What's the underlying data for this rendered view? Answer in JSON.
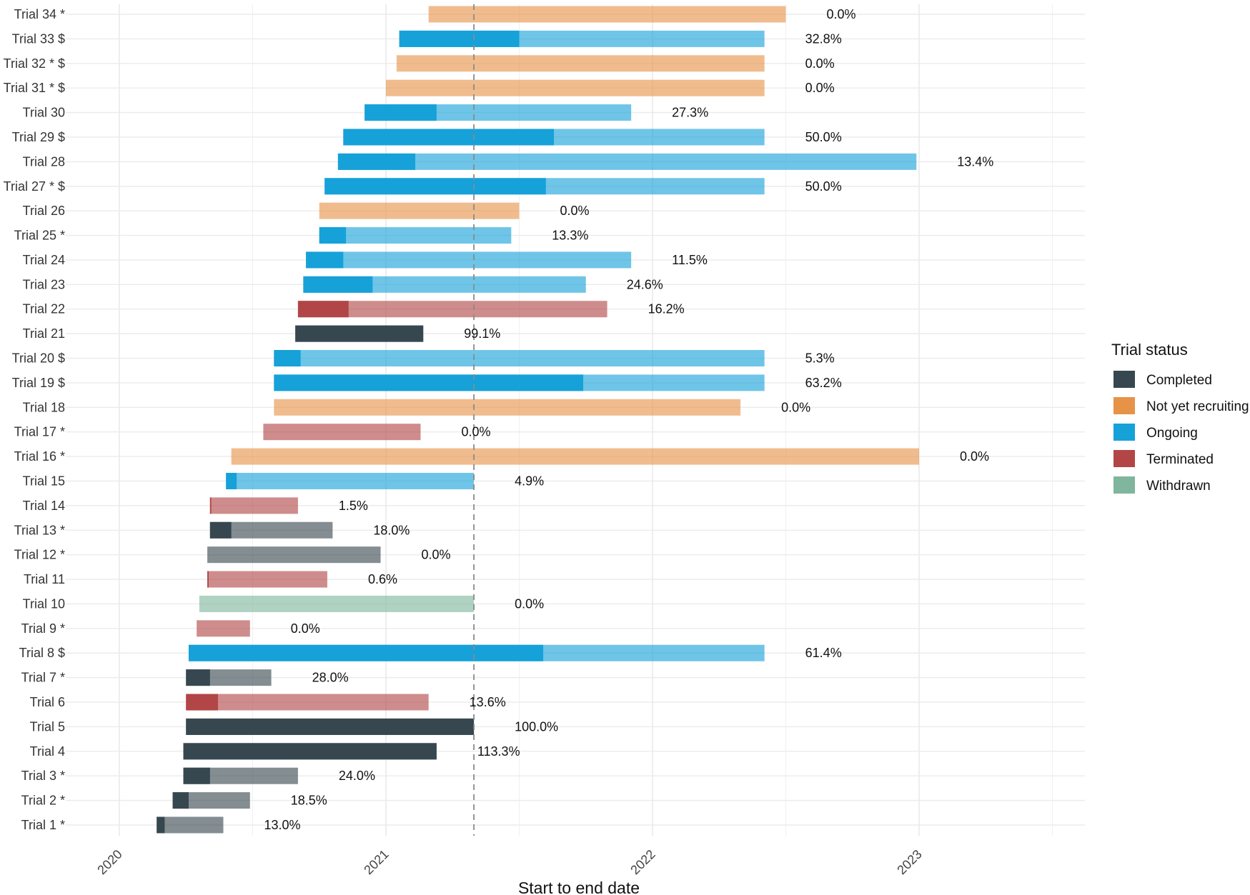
{
  "chart_data": {
    "type": "bar",
    "subtype": "gantt",
    "xlabel": "Start to end date",
    "x_ticks": [
      "2020",
      "2021",
      "2022",
      "2023"
    ],
    "xlim": [
      2019.8,
      2023.65
    ],
    "reference_line_x": 2021.33,
    "legend_title": "Trial status",
    "legend_position": "right",
    "statuses": [
      {
        "key": "completed",
        "label": "Completed",
        "color": "#37474f"
      },
      {
        "key": "not_yet",
        "label": "Not yet recruiting",
        "color": "#e69348"
      },
      {
        "key": "ongoing",
        "label": "Ongoing",
        "color": "#16a1d9"
      },
      {
        "key": "terminated",
        "label": "Terminated",
        "color": "#b24646"
      },
      {
        "key": "withdrawn",
        "label": "Withdrawn",
        "color": "#7fb69d"
      }
    ],
    "trials": [
      {
        "label": "Trial 1 *",
        "status": "completed",
        "start": 2020.14,
        "end": 2020.39,
        "progress_end": 2020.17,
        "pct": "13.0%"
      },
      {
        "label": "Trial 2 *",
        "status": "completed",
        "start": 2020.2,
        "end": 2020.49,
        "progress_end": 2020.26,
        "pct": "18.5%"
      },
      {
        "label": "Trial 3 *",
        "status": "completed",
        "start": 2020.24,
        "end": 2020.67,
        "progress_end": 2020.34,
        "pct": "24.0%"
      },
      {
        "label": "Trial 4",
        "status": "completed",
        "start": 2020.24,
        "end": 2021.19,
        "progress_end": 2021.19,
        "pct": "113.3%"
      },
      {
        "label": "Trial 5",
        "status": "completed",
        "start": 2020.25,
        "end": 2021.33,
        "progress_end": 2021.33,
        "pct": "100.0%"
      },
      {
        "label": "Trial 6",
        "status": "terminated",
        "start": 2020.25,
        "end": 2021.16,
        "progress_end": 2020.37,
        "pct": "13.6%"
      },
      {
        "label": "Trial 7 *",
        "status": "completed",
        "start": 2020.25,
        "end": 2020.57,
        "progress_end": 2020.34,
        "pct": "28.0%"
      },
      {
        "label": "Trial 8 $",
        "status": "ongoing",
        "start": 2020.26,
        "end": 2022.42,
        "progress_end": 2021.59,
        "pct": "61.4%"
      },
      {
        "label": "Trial 9 *",
        "status": "terminated",
        "start": 2020.29,
        "end": 2020.49,
        "progress_end": 2020.29,
        "pct": "0.0%"
      },
      {
        "label": "Trial 10",
        "status": "withdrawn",
        "start": 2020.3,
        "end": 2021.33,
        "progress_end": 2020.3,
        "pct": "0.0%"
      },
      {
        "label": "Trial 11",
        "status": "terminated",
        "start": 2020.33,
        "end": 2020.78,
        "progress_end": 2020.335,
        "pct": "0.6%"
      },
      {
        "label": "Trial 12 *",
        "status": "completed",
        "start": 2020.33,
        "end": 2020.98,
        "progress_end": 2020.33,
        "pct": "0.0%"
      },
      {
        "label": "Trial 13 *",
        "status": "completed",
        "start": 2020.34,
        "end": 2020.8,
        "progress_end": 2020.42,
        "pct": "18.0%"
      },
      {
        "label": "Trial 14",
        "status": "terminated",
        "start": 2020.34,
        "end": 2020.67,
        "progress_end": 2020.345,
        "pct": "1.5%"
      },
      {
        "label": "Trial 15",
        "status": "ongoing",
        "start": 2020.4,
        "end": 2021.33,
        "progress_end": 2020.44,
        "pct": "4.9%"
      },
      {
        "label": "Trial 16 *",
        "status": "not_yet",
        "start": 2020.42,
        "end": 2023.0,
        "progress_end": 2020.42,
        "pct": "0.0%"
      },
      {
        "label": "Trial 17 *",
        "status": "terminated",
        "start": 2020.54,
        "end": 2021.13,
        "progress_end": 2020.54,
        "pct": "0.0%"
      },
      {
        "label": "Trial 18",
        "status": "not_yet",
        "start": 2020.58,
        "end": 2022.33,
        "progress_end": 2020.58,
        "pct": "0.0%"
      },
      {
        "label": "Trial 19 $",
        "status": "ongoing",
        "start": 2020.58,
        "end": 2022.42,
        "progress_end": 2021.74,
        "pct": "63.2%"
      },
      {
        "label": "Trial 20 $",
        "status": "ongoing",
        "start": 2020.58,
        "end": 2022.42,
        "progress_end": 2020.68,
        "pct": "5.3%"
      },
      {
        "label": "Trial 21",
        "status": "completed",
        "start": 2020.66,
        "end": 2021.14,
        "progress_end": 2021.14,
        "pct": "99.1%"
      },
      {
        "label": "Trial 22",
        "status": "terminated",
        "start": 2020.67,
        "end": 2021.83,
        "progress_end": 2020.86,
        "pct": "16.2%"
      },
      {
        "label": "Trial 23",
        "status": "ongoing",
        "start": 2020.69,
        "end": 2021.75,
        "progress_end": 2020.95,
        "pct": "24.6%"
      },
      {
        "label": "Trial 24",
        "status": "ongoing",
        "start": 2020.7,
        "end": 2021.92,
        "progress_end": 2020.84,
        "pct": "11.5%"
      },
      {
        "label": "Trial 25 *",
        "status": "ongoing",
        "start": 2020.75,
        "end": 2021.47,
        "progress_end": 2020.85,
        "pct": "13.3%"
      },
      {
        "label": "Trial 26",
        "status": "not_yet",
        "start": 2020.75,
        "end": 2021.5,
        "progress_end": 2020.75,
        "pct": "0.0%"
      },
      {
        "label": "Trial 27 * $",
        "status": "ongoing",
        "start": 2020.77,
        "end": 2022.42,
        "progress_end": 2021.6,
        "pct": "50.0%"
      },
      {
        "label": "Trial 28",
        "status": "ongoing",
        "start": 2020.82,
        "end": 2022.99,
        "progress_end": 2021.11,
        "pct": "13.4%"
      },
      {
        "label": "Trial 29 $",
        "status": "ongoing",
        "start": 2020.84,
        "end": 2022.42,
        "progress_end": 2021.63,
        "pct": "50.0%"
      },
      {
        "label": "Trial 30",
        "status": "ongoing",
        "start": 2020.92,
        "end": 2021.92,
        "progress_end": 2021.19,
        "pct": "27.3%"
      },
      {
        "label": "Trial 31 * $",
        "status": "not_yet",
        "start": 2021.0,
        "end": 2022.42,
        "progress_end": 2021.0,
        "pct": "0.0%"
      },
      {
        "label": "Trial 32 * $",
        "status": "not_yet",
        "start": 2021.04,
        "end": 2022.42,
        "progress_end": 2021.04,
        "pct": "0.0%"
      },
      {
        "label": "Trial 33 $",
        "status": "ongoing",
        "start": 2021.05,
        "end": 2022.42,
        "progress_end": 2021.5,
        "pct": "32.8%"
      },
      {
        "label": "Trial 34 *",
        "status": "not_yet",
        "start": 2021.16,
        "end": 2022.5,
        "progress_end": 2021.16,
        "pct": "0.0%"
      }
    ]
  }
}
